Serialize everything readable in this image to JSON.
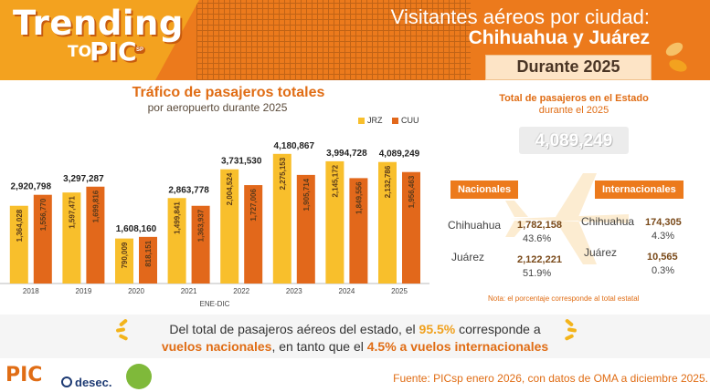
{
  "header": {
    "logo": {
      "word": "Trending",
      "to": "TO",
      "pic": "PIC",
      "sp": "SP"
    },
    "title_line1": "Visitantes aéreos por ciudad:",
    "title_line2": "Chihuahua y Juárez",
    "period": "Durante 2025"
  },
  "chart_data": {
    "type": "bar",
    "title": "Tráfico de pasajeros totales",
    "subtitle": "por aeropuerto durante 2025",
    "xlabel": "ENE-DIC",
    "categories": [
      "2018",
      "2019",
      "2020",
      "2021",
      "2022",
      "2023",
      "2024",
      "2025"
    ],
    "totals": [
      "2,920,798",
      "3,297,287",
      "1,608,160",
      "2,863,778",
      "3,731,530",
      "4,180,867",
      "3,994,728",
      "4,089,249"
    ],
    "series": [
      {
        "name": "JRZ",
        "color": "#f8bf2c",
        "values": [
          1364028,
          1597471,
          790009,
          1499841,
          2004524,
          2275153,
          2145172,
          2132786
        ],
        "labels": [
          "1,364,028",
          "1,597,471",
          "790,009",
          "1,499,841",
          "2,004,524",
          "2,275,153",
          "2,145,172",
          "2,132,786"
        ]
      },
      {
        "name": "CUU",
        "color": "#e2681b",
        "values": [
          1556770,
          1699816,
          818151,
          1363937,
          1727006,
          1905714,
          1849556,
          1956463
        ],
        "labels": [
          "1,556,770",
          "1,699,816",
          "818,151",
          "1,363,937",
          "1,727,006",
          "1,905,714",
          "1,849,556",
          "1,956,463"
        ]
      }
    ],
    "ylim": [
      0,
      2400000
    ],
    "legend_position": "top-right",
    "grid": false
  },
  "state_panel": {
    "title": "Total de pasajeros en el Estado",
    "subtitle": "durante el 2025",
    "total": "4,089,249",
    "nacionales": {
      "label": "Nacionales",
      "chihuahua": {
        "city": "Chihuahua",
        "value": "1,782,158",
        "pct": "43.6%"
      },
      "juarez": {
        "city": "Juárez",
        "value": "2,122,221",
        "pct": "51.9%"
      }
    },
    "internacionales": {
      "label": "Internacionales",
      "chihuahua": {
        "city": "Chihuahua",
        "value": "174,305",
        "pct": "4.3%"
      },
      "juarez": {
        "city": "Juárez",
        "value": "10,565",
        "pct": "0.3%"
      }
    },
    "note": "Nota: el porcentaje corresponde al total estatal"
  },
  "summary": {
    "p1": "Del total de pasajeros aéreos del estado, el ",
    "h1": "95.5%",
    "p2": " corresponde a",
    "h2": "vuelos nacionales",
    "p3": ", en tanto que el ",
    "h3": "4.5% a vuelos internacionales"
  },
  "footer": {
    "source": "Fuente: PICsp enero 2026, con datos de OMA a diciembre 2025.",
    "logo_pic": "PIC",
    "logo_desec": "desec."
  },
  "colors": {
    "accent": "#ec7a1c",
    "yellow": "#f8bf2c",
    "dark_orange": "#e2681b"
  }
}
